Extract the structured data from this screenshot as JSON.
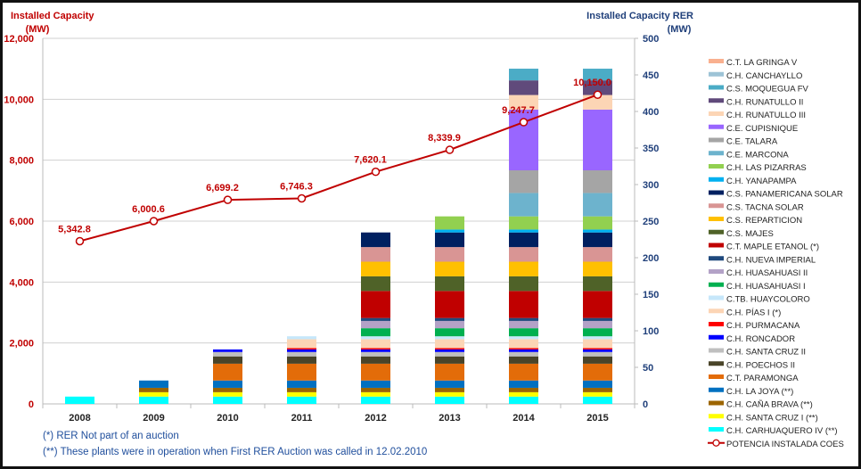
{
  "chart_data": {
    "type": "bar",
    "stacked": true,
    "categories": [
      "2008",
      "2009",
      "2010",
      "2011",
      "2012",
      "2013",
      "2014",
      "2015"
    ],
    "left_axis": {
      "label_line1": "Installed Capacity",
      "label_line2": "(MW)",
      "ylim": [
        0,
        12000
      ],
      "ticks": [
        "0",
        "2,000",
        "4,000",
        "6,000",
        "8,000",
        "10,000",
        "12,000"
      ],
      "color": "#c00000"
    },
    "right_axis": {
      "label_line1": "Installed Capacity RER",
      "label_line2": "(MW)",
      "ylim": [
        0,
        500
      ],
      "ticks": [
        "0",
        "50",
        "100",
        "150",
        "200",
        "250",
        "300",
        "350",
        "400",
        "450",
        "500"
      ],
      "color": "#1f3f7a"
    },
    "grid": true,
    "legend_position": "right",
    "series": [
      {
        "name": "C.H. CARHUAQUERO IV (**)",
        "color": "#00ffff",
        "values": [
          10,
          10,
          10,
          10,
          10,
          10,
          10,
          10
        ]
      },
      {
        "name": "C.H. SANTA CRUZ I (**)",
        "color": "#ffff00",
        "values": [
          0,
          6,
          6,
          6,
          6,
          6,
          6,
          6
        ]
      },
      {
        "name": "C.H. CAÑA BRAVA (**)",
        "color": "#9c6500",
        "values": [
          0,
          6,
          6,
          6,
          6,
          6,
          6,
          6
        ]
      },
      {
        "name": "C.H. LA JOYA (**)",
        "color": "#0070c0",
        "values": [
          0,
          10,
          10,
          10,
          10,
          10,
          10,
          10
        ]
      },
      {
        "name": "C.T. PARAMONGA",
        "color": "#e36c09",
        "values": [
          0,
          0,
          23,
          23,
          23,
          23,
          23,
          23
        ]
      },
      {
        "name": "C.H. POECHOS II",
        "color": "#494429",
        "values": [
          0,
          0,
          10,
          10,
          10,
          10,
          10,
          10
        ]
      },
      {
        "name": "C.H. SANTA CRUZ II",
        "color": "#bfbfbf",
        "values": [
          0,
          0,
          6,
          6,
          6,
          6,
          6,
          6
        ]
      },
      {
        "name": "C.H. RONCADOR",
        "color": "#0000ff",
        "values": [
          0,
          0,
          3.5,
          3.5,
          3.5,
          3.5,
          3.5,
          3.5
        ]
      },
      {
        "name": "C.H. PURMACANA",
        "color": "#ff0000",
        "values": [
          0,
          0,
          0,
          2,
          2,
          2,
          2,
          2
        ]
      },
      {
        "name": "C.H. PÍAS I (*)",
        "color": "#fcd5b5",
        "values": [
          0,
          0,
          0,
          12,
          12,
          12,
          12,
          12
        ]
      },
      {
        "name": "C.TB. HUAYCOLORO",
        "color": "#c6e7fa",
        "values": [
          0,
          0,
          0,
          4,
          4,
          4,
          4,
          4
        ]
      },
      {
        "name": "C.H. HUASAHUASI I",
        "color": "#00b050",
        "values": [
          0,
          0,
          0,
          0,
          11,
          11,
          11,
          11
        ]
      },
      {
        "name": "C.H. HUASAHUASI II",
        "color": "#b3a2c7",
        "values": [
          0,
          0,
          0,
          0,
          10,
          10,
          10,
          10
        ]
      },
      {
        "name": "C.H. NUEVA IMPERIAL",
        "color": "#1f497d",
        "values": [
          0,
          0,
          0,
          0,
          4,
          4,
          4,
          4
        ]
      },
      {
        "name": "C.T. MAPLE ETANOL (*)",
        "color": "#c00000",
        "values": [
          0,
          0,
          0,
          0,
          37,
          37,
          37,
          37
        ]
      },
      {
        "name": "C.S. MAJES",
        "color": "#4f6228",
        "values": [
          0,
          0,
          0,
          0,
          20,
          20,
          20,
          20
        ]
      },
      {
        "name": "C.S. REPARTICION",
        "color": "#ffc000",
        "values": [
          0,
          0,
          0,
          0,
          20,
          20,
          20,
          20
        ]
      },
      {
        "name": "C.S. TACNA SOLAR",
        "color": "#d99594",
        "values": [
          0,
          0,
          0,
          0,
          20,
          20,
          20,
          20
        ]
      },
      {
        "name": "C.S. PANAMERICANA SOLAR",
        "color": "#002060",
        "values": [
          0,
          0,
          0,
          0,
          20,
          20,
          20,
          20
        ]
      },
      {
        "name": "C.H. YANAPAMPA",
        "color": "#00b0f0",
        "values": [
          0,
          0,
          0,
          0,
          0,
          4,
          4,
          4
        ]
      },
      {
        "name": "C.H. LAS PIZARRAS",
        "color": "#92d050",
        "values": [
          0,
          0,
          0,
          0,
          0,
          18,
          18,
          18
        ]
      },
      {
        "name": "C.E. MARCONA",
        "color": "#6db3cd",
        "values": [
          0,
          0,
          0,
          0,
          0,
          0,
          32,
          32
        ]
      },
      {
        "name": "C.E. TALARA",
        "color": "#a5a5a5",
        "values": [
          0,
          0,
          0,
          0,
          0,
          0,
          31,
          31
        ]
      },
      {
        "name": "C.E. CUPISNIQUE",
        "color": "#9966ff",
        "values": [
          0,
          0,
          0,
          0,
          0,
          0,
          83,
          83
        ]
      },
      {
        "name": "C.H. RUNATULLO III",
        "color": "#fcd5b5",
        "values": [
          0,
          0,
          0,
          0,
          0,
          0,
          20,
          20
        ]
      },
      {
        "name": "C.H. RUNATULLO II",
        "color": "#604a7b",
        "values": [
          0,
          0,
          0,
          0,
          0,
          0,
          20,
          20
        ]
      },
      {
        "name": "C.S. MOQUEGUA FV",
        "color": "#4bacc6",
        "values": [
          0,
          0,
          0,
          0,
          0,
          0,
          16,
          16
        ]
      },
      {
        "name": "C.H. CANCHAYLLO",
        "color": "#9dc3d6",
        "values": [
          0,
          0,
          0,
          0,
          0,
          0,
          0,
          0
        ]
      },
      {
        "name": "C.T. LA GRINGA V",
        "color": "#f9b08f",
        "values": [
          0,
          0,
          0,
          0,
          0,
          0,
          0,
          0
        ]
      }
    ],
    "line": {
      "name": "POTENCIA INSTALADA COES",
      "axis": "left",
      "color": "#c00000",
      "values": [
        5342.8,
        6000.6,
        6699.2,
        6746.3,
        7620.1,
        8339.9,
        9247.7,
        10150.0
      ],
      "labels": [
        "5,342.8",
        "6,000.6",
        "6,699.2",
        "6,746.3",
        "7,620.1",
        "8,339.9",
        "9,247.7",
        "10,150.0"
      ]
    }
  },
  "notes": {
    "note1": "(*) RER Not part of an auction",
    "note2": "(**) These plants were in operation when First RER Auction  was called in 12.02.2010"
  }
}
